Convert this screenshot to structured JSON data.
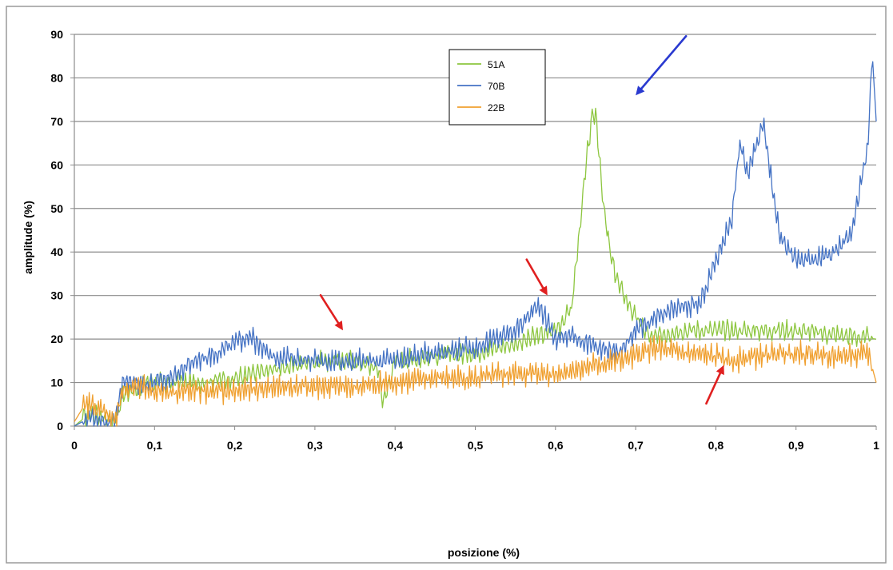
{
  "chart_data": {
    "type": "line",
    "xlabel": "posizione (%)",
    "ylabel": "amplitude (%)",
    "xlim": [
      0,
      1
    ],
    "ylim": [
      0,
      90
    ],
    "x_ticks": [
      0,
      0.1,
      0.2,
      0.3,
      0.4,
      0.5,
      0.6,
      0.7,
      0.8,
      0.9,
      1
    ],
    "x_tick_labels": [
      "0",
      "0,1",
      "0,2",
      "0,3",
      "0,4",
      "0,5",
      "0,6",
      "0,7",
      "0,8",
      "0,9",
      "1"
    ],
    "y_ticks": [
      0,
      10,
      20,
      30,
      40,
      50,
      60,
      70,
      80,
      90
    ],
    "y_tick_labels": [
      "0",
      "10",
      "20",
      "30",
      "40",
      "50",
      "60",
      "70",
      "80",
      "90"
    ],
    "grid": "horizontal",
    "legend_position": "top-center",
    "series": [
      {
        "name": "51A",
        "color": "#8dc63f",
        "x": [
          0,
          0.02,
          0.04,
          0.05,
          0.06,
          0.08,
          0.1,
          0.15,
          0.2,
          0.25,
          0.3,
          0.35,
          0.38,
          0.385,
          0.4,
          0.45,
          0.5,
          0.55,
          0.6,
          0.62,
          0.63,
          0.64,
          0.645,
          0.65,
          0.655,
          0.66,
          0.67,
          0.68,
          0.7,
          0.72,
          0.75,
          0.8,
          0.85,
          0.9,
          0.95,
          1
        ],
        "y": [
          0,
          3,
          2,
          1,
          7,
          9,
          10,
          10,
          11,
          13,
          15,
          15,
          13,
          5,
          15,
          16,
          17,
          19,
          22,
          27,
          45,
          63,
          70,
          72,
          62,
          50,
          38,
          32,
          25,
          20,
          22,
          22,
          22,
          22,
          21,
          20
        ]
      },
      {
        "name": "70B",
        "color": "#4472c4",
        "x": [
          0,
          0.02,
          0.04,
          0.05,
          0.06,
          0.08,
          0.1,
          0.12,
          0.15,
          0.18,
          0.2,
          0.22,
          0.23,
          0.25,
          0.3,
          0.35,
          0.4,
          0.45,
          0.5,
          0.55,
          0.58,
          0.6,
          0.62,
          0.65,
          0.68,
          0.7,
          0.75,
          0.78,
          0.8,
          0.82,
          0.83,
          0.84,
          0.86,
          0.87,
          0.88,
          0.9,
          0.92,
          0.95,
          0.97,
          0.98,
          0.99,
          0.995,
          1
        ],
        "y": [
          0,
          2,
          1,
          1,
          10,
          10,
          10,
          11,
          15,
          17,
          19,
          21,
          18,
          16,
          15,
          15,
          15,
          17,
          18,
          22,
          28,
          20,
          21,
          18,
          17,
          22,
          27,
          28,
          38,
          48,
          65,
          58,
          70,
          55,
          44,
          38,
          38,
          40,
          45,
          55,
          65,
          86,
          70
        ]
      },
      {
        "name": "22B",
        "color": "#f0a030",
        "x": [
          0,
          0.01,
          0.02,
          0.03,
          0.04,
          0.05,
          0.06,
          0.08,
          0.1,
          0.15,
          0.2,
          0.25,
          0.3,
          0.35,
          0.4,
          0.45,
          0.5,
          0.55,
          0.6,
          0.65,
          0.7,
          0.72,
          0.75,
          0.8,
          0.82,
          0.85,
          0.9,
          0.95,
          0.99,
          1
        ],
        "y": [
          1,
          4,
          5,
          4,
          3,
          1,
          8,
          9,
          8,
          8,
          8,
          9,
          9,
          9,
          10,
          11,
          11,
          12,
          12,
          14,
          16,
          18,
          17,
          16,
          15,
          16,
          17,
          16,
          17,
          10
        ]
      }
    ],
    "annotations": [
      {
        "type": "arrow",
        "color": "#e02020",
        "points_to": [
          0.335,
          22
        ]
      },
      {
        "type": "arrow",
        "color": "#e02020",
        "points_to": [
          0.59,
          30
        ]
      },
      {
        "type": "arrow",
        "color": "#2a3ad0",
        "points_to": [
          0.7,
          76
        ]
      },
      {
        "type": "arrow",
        "color": "#e02020",
        "points_to": [
          0.81,
          14
        ]
      }
    ]
  }
}
